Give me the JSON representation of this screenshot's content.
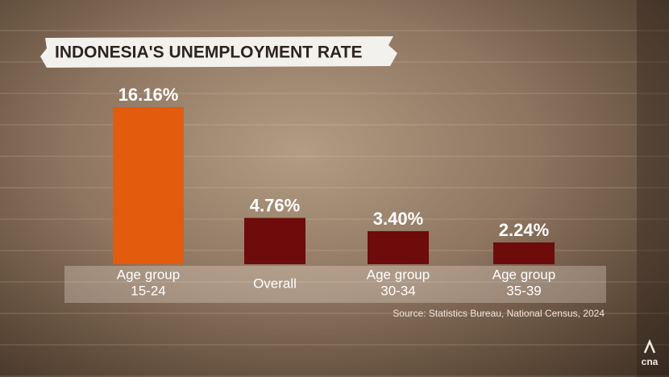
{
  "chart_data": {
    "type": "bar",
    "title": "INDONESIA'S UNEMPLOYMENT RATE",
    "categories": [
      [
        "Age group",
        "15-24"
      ],
      [
        "Overall"
      ],
      [
        "Age group",
        "30-34"
      ],
      [
        "Age group",
        "35-39"
      ]
    ],
    "values": [
      16.16,
      4.76,
      3.4,
      2.24
    ],
    "value_labels": [
      "16.16%",
      "4.76%",
      "3.40%",
      "2.24%"
    ],
    "colors": [
      "#e35b0c",
      "#6e0b0b",
      "#6e0b0b",
      "#6e0b0b"
    ],
    "source": "Source: Statistics Bureau, National Census, 2024",
    "logo": "cna"
  }
}
